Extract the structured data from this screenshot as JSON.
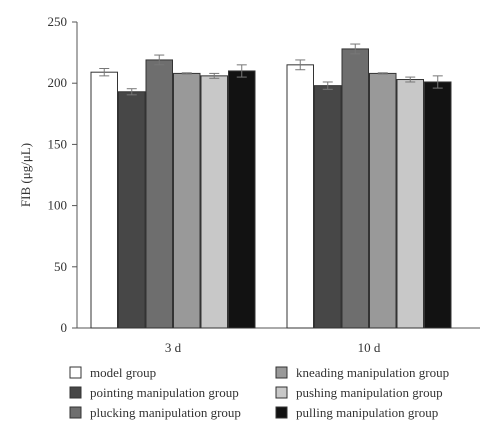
{
  "chart_data": {
    "type": "bar",
    "title": "",
    "xlabel": "",
    "ylabel": "FIB (μg/μL)",
    "ylim": [
      0,
      250
    ],
    "yticks": [
      0,
      50,
      100,
      150,
      200,
      250
    ],
    "grid": false,
    "legend_position": "bottom",
    "categories": [
      "3 d",
      "10 d"
    ],
    "series": [
      {
        "name": "model group",
        "color": "#ffffff",
        "values": [
          209,
          215
        ],
        "errors": [
          3,
          4
        ]
      },
      {
        "name": "pointing manipulation group",
        "color": "#474747",
        "values": [
          193,
          198
        ],
        "errors": [
          2.5,
          3
        ]
      },
      {
        "name": "plucking manipulation group",
        "color": "#6e6e6e",
        "values": [
          219,
          228
        ],
        "errors": [
          4,
          4
        ]
      },
      {
        "name": "kneading manipulation group",
        "color": "#999999",
        "values": [
          208,
          208
        ],
        "errors": [
          0.5,
          0.5
        ]
      },
      {
        "name": "pushing manipulation group",
        "color": "#c8c8c8",
        "values": [
          206,
          203
        ],
        "errors": [
          2,
          2
        ]
      },
      {
        "name": "pulling manipulation group",
        "color": "#121212",
        "values": [
          210,
          201
        ],
        "errors": [
          5,
          5
        ]
      }
    ]
  },
  "legend": {
    "items": [
      {
        "label": "model group",
        "color": "#ffffff"
      },
      {
        "label": "kneading manipulation group",
        "color": "#999999"
      },
      {
        "label": "pointing manipulation group",
        "color": "#474747"
      },
      {
        "label": "pushing manipulation group",
        "color": "#c8c8c8"
      },
      {
        "label": "plucking manipulation group",
        "color": "#6e6e6e"
      },
      {
        "label": "pulling manipulation group",
        "color": "#121212"
      }
    ]
  }
}
